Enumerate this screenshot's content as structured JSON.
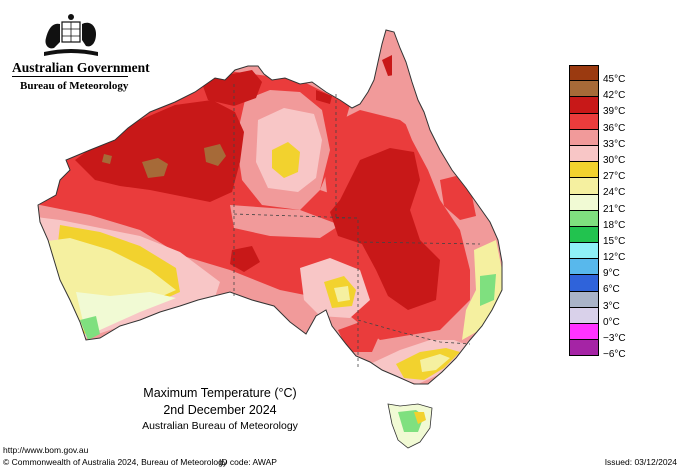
{
  "header": {
    "government": "Australian Government",
    "bureau": "Bureau of Meteorology",
    "crest_icon": "commonwealth-coat-of-arms"
  },
  "legend": [
    {
      "label": "45°C",
      "color": "#9b3a10"
    },
    {
      "label": "42°C",
      "color": "#a66a38"
    },
    {
      "label": "39°C",
      "color": "#c81818"
    },
    {
      "label": "36°C",
      "color": "#ea3c3c"
    },
    {
      "label": "33°C",
      "color": "#f19a9a"
    },
    {
      "label": "30°C",
      "color": "#f8c6c6"
    },
    {
      "label": "27°C",
      "color": "#f2d22e"
    },
    {
      "label": "24°C",
      "color": "#f5f0a0"
    },
    {
      "label": "21°C",
      "color": "#f1fad4"
    },
    {
      "label": "18°C",
      "color": "#7fe07f"
    },
    {
      "label": "15°C",
      "color": "#22c34f"
    },
    {
      "label": "12°C",
      "color": "#8ff0f7"
    },
    {
      "label": "9°C",
      "color": "#58b8ec"
    },
    {
      "label": "6°C",
      "color": "#2f63da"
    },
    {
      "label": "3°C",
      "color": "#aab4c8"
    },
    {
      "label": "0°C",
      "color": "#d9d1ea"
    },
    {
      "label": "−3°C",
      "color": "#ff33ff"
    },
    {
      "label": "−6°C",
      "color": "#a524a5"
    }
  ],
  "caption": {
    "title": "Maximum Temperature (°C)",
    "date": "2nd December 2024",
    "source": "Australian Bureau of Meteorology"
  },
  "footer": {
    "url": "http://www.bom.gov.au",
    "copyright": "© Commonwealth of Australia 2024, Bureau of Meteorology",
    "id_code": "ID code: AWAP",
    "issued": "Issued: 03/12/2024"
  },
  "map_colors": {
    "c42": "#a66a38",
    "c39": "#c81818",
    "c36": "#ea3c3c",
    "c33": "#f19a9a",
    "c30": "#f8c6c6",
    "c27": "#f2d22e",
    "c24": "#f5f0a0",
    "c21": "#f1fad4",
    "c18": "#7fe07f"
  }
}
